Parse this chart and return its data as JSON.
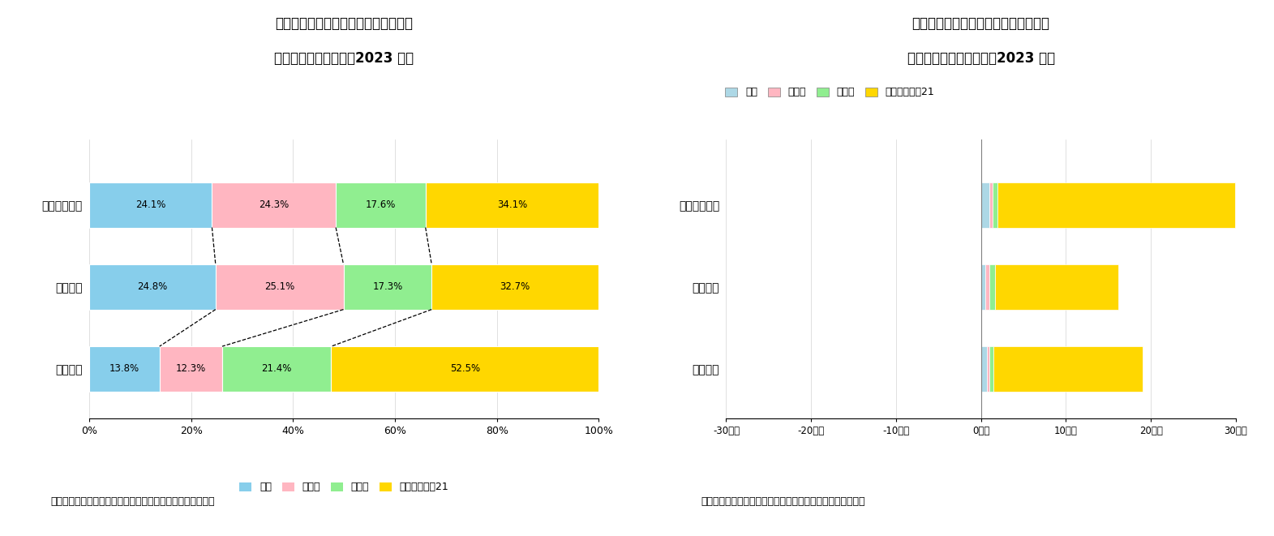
{
  "chart1": {
    "title_line1": "図表－６　横浜ビジネス地区の地区別",
    "title_line2": "オフィス面積構成比（2023 年）",
    "categories": [
      "賃貸可能面積",
      "賃貸面積",
      "空室面積"
    ],
    "series_order": [
      "関内",
      "横浜駅",
      "新横浜",
      "みなとみらい21"
    ],
    "series": {
      "関内": [
        24.1,
        24.8,
        13.8
      ],
      "横浜駅": [
        24.3,
        25.1,
        12.3
      ],
      "新横浜": [
        17.6,
        17.3,
        21.4
      ],
      "みなとみらい21": [
        34.1,
        32.7,
        52.5
      ]
    },
    "colors": {
      "関内": "#87CEEB",
      "横浜駅": "#FFB6C1",
      "新横浜": "#90EE90",
      "みなとみらい21": "#FFD700"
    },
    "source": "（出所）三鬼商事のデータを基にニッセイ基礎研究所が作成"
  },
  "chart2": {
    "title_line1": "図表－７　横浜ビジネス地区の地区別",
    "title_line2": "オフィス需給面積増分（2023 年）",
    "categories": [
      "賃貸可能面積",
      "賃貸面積",
      "空室面積"
    ],
    "series_order": [
      "関内",
      "横浜駅",
      "新横浜",
      "みなとみらい21"
    ],
    "series": {
      "関内": [
        1.0,
        0.5,
        0.7
      ],
      "横浜駅": [
        0.4,
        0.5,
        0.3
      ],
      "新横浜": [
        0.5,
        0.7,
        0.5
      ],
      "みなとみらい21": [
        28.0,
        14.5,
        17.5
      ]
    },
    "colors": {
      "関内": "#ADD8E6",
      "横浜駅": "#FFB6C1",
      "新横浜": "#90EE90",
      "みなとみらい21": "#FFD700"
    },
    "xlim": [
      -30,
      30
    ],
    "xticks": [
      -30,
      -20,
      -10,
      0,
      10,
      20,
      30
    ],
    "xtick_labels": [
      "-30千坪",
      "-20千坪",
      "-10千坪",
      "0千坪",
      "10千坪",
      "20千坪",
      "30千坪"
    ],
    "source": "（出所）三鬼商事のデータを基にニッセイ基礎研究所が作成"
  },
  "legend_labels": [
    "関内",
    "横浜駅",
    "新横浜",
    "みなとみらい21"
  ],
  "legend_colors_chart1": [
    "#87CEEB",
    "#FFB6C1",
    "#90EE90",
    "#FFD700"
  ],
  "legend_colors_chart2": [
    "#ADD8E6",
    "#FFB6C1",
    "#90EE90",
    "#FFD700"
  ],
  "background_color": "#FFFFFF"
}
